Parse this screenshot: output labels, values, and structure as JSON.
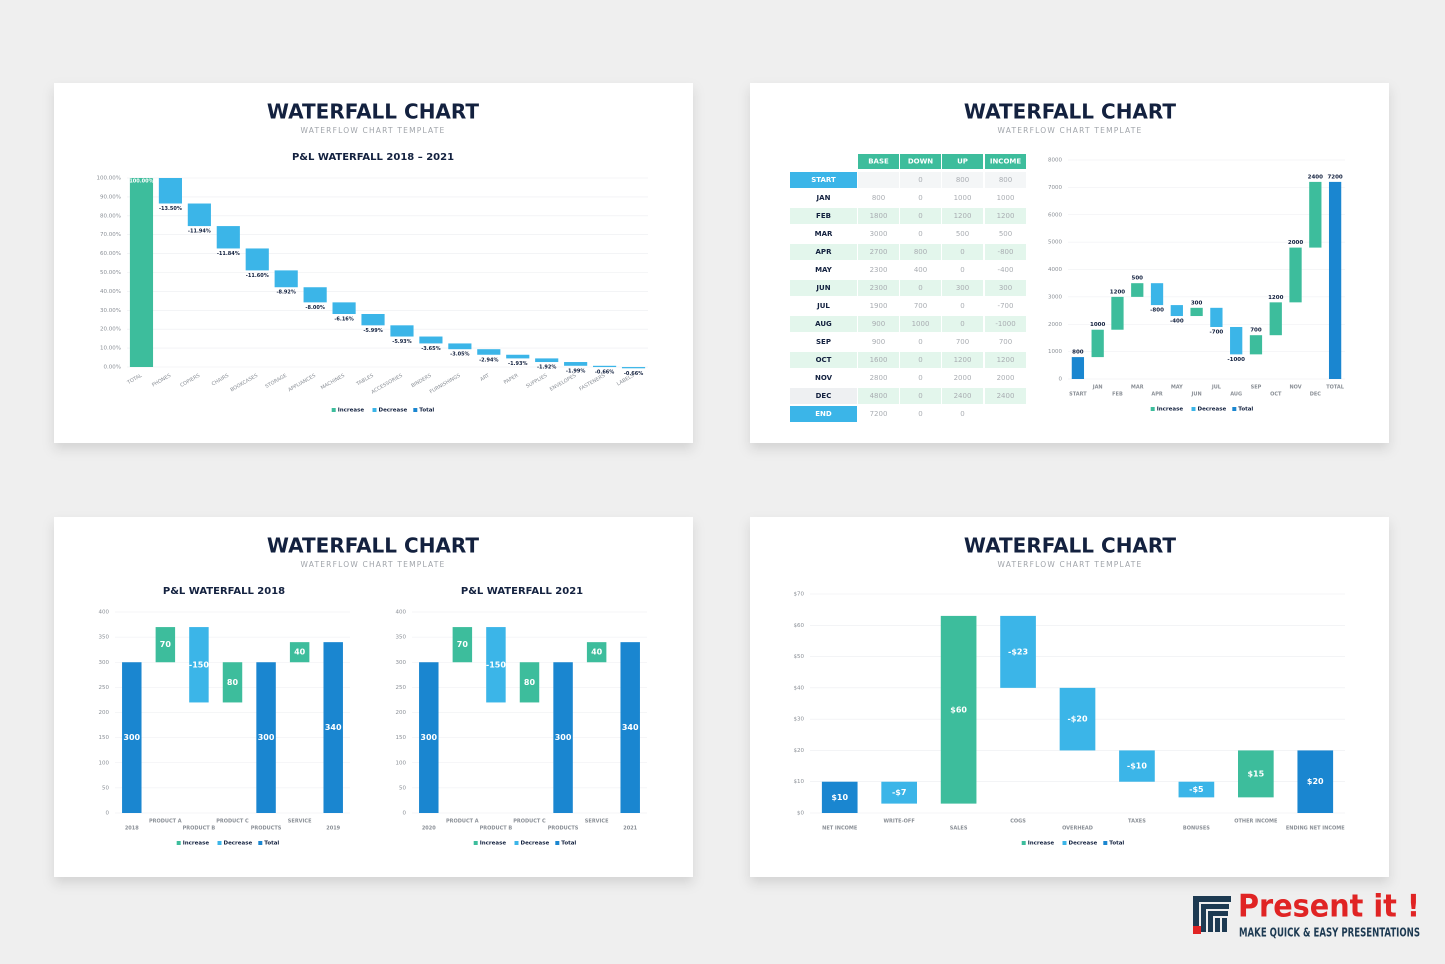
{
  "slides": [
    {
      "title": "WATERFALL CHART",
      "subtitle": "WATERFLOW CHART TEMPLATE"
    },
    {
      "title": "WATERFALL CHART",
      "subtitle": "WATERFLOW CHART TEMPLATE"
    },
    {
      "title": "WATERFALL CHART",
      "subtitle": "WATERFLOW CHART TEMPLATE"
    },
    {
      "title": "WATERFALL CHART",
      "subtitle": "WATERFLOW CHART TEMPLATE"
    }
  ],
  "chart_data": [
    {
      "type": "waterfall",
      "title": "P&L WATERFALL 2018 – 2021",
      "categories": [
        "TOTAL",
        "PHONES",
        "COPIERS",
        "CHAIRS",
        "BOOKCASES",
        "STORAGE",
        "APPLIANCES",
        "MACHINES",
        "TABLES",
        "ACCESSORIES",
        "BINDERS",
        "FURNISHINGS",
        "ART",
        "PAPER",
        "SUPPLIES",
        "ENVELOPES",
        "FASTENERS",
        "LABELS"
      ],
      "values": [
        100,
        -13.5,
        -11.94,
        -11.84,
        -11.6,
        -8.92,
        -8,
        -6.16,
        -5.99,
        -5.93,
        -3.65,
        -3.05,
        -2.94,
        -1.93,
        -1.92,
        -1.99,
        -0.66,
        -0.66
      ],
      "value_labels": [
        "100.00%",
        "-13.50%",
        "-11.94%",
        "-11.84%",
        "-11.60%",
        "-8.92%",
        "-8.00%",
        "-6.16%",
        "-5.99%",
        "-5.93%",
        "-3.65%",
        "-3.05%",
        "-2.94%",
        "-1.93%",
        "-1.92%",
        "-1.99%",
        "-0.66%",
        "-0.66%"
      ],
      "measure": [
        "relative",
        "relative",
        "relative",
        "relative",
        "relative",
        "relative",
        "relative",
        "relative",
        "relative",
        "relative",
        "relative",
        "relative",
        "relative",
        "relative",
        "relative",
        "relative",
        "relative",
        "relative"
      ],
      "ylim": [
        0,
        100
      ],
      "yticks": [
        {
          "value": 0,
          "label": "0.00%"
        },
        {
          "value": 10,
          "label": "10.00%"
        },
        {
          "value": 20,
          "label": "20.00%"
        },
        {
          "value": 30,
          "label": "30.00%"
        },
        {
          "value": 40,
          "label": "40.00%"
        },
        {
          "value": 50,
          "label": "50.00%"
        },
        {
          "value": 60,
          "label": "60.00%"
        },
        {
          "value": 70,
          "label": "70.00%"
        },
        {
          "value": 80,
          "label": "80.00%"
        },
        {
          "value": 90,
          "label": "90.00%"
        },
        {
          "value": 100,
          "label": "100.00%"
        }
      ],
      "grid": true,
      "legend": [
        {
          "name": "Increase",
          "color": "#3dbd9c"
        },
        {
          "name": "Decrease",
          "color": "#3bb5e8"
        },
        {
          "name": "Total",
          "color": "#1a86d0"
        }
      ]
    },
    {
      "type": "waterfall",
      "categories": [
        "START",
        "JAN",
        "FEB",
        "MAR",
        "APR",
        "MAY",
        "JUN",
        "JUL",
        "AUG",
        "SEP",
        "OCT",
        "NOV",
        "DEC",
        "TOTAL"
      ],
      "values": [
        800,
        1000,
        1200,
        500,
        -800,
        -400,
        300,
        -700,
        -1000,
        700,
        1200,
        2000,
        2400,
        7200
      ],
      "measure": [
        "total",
        "relative",
        "relative",
        "relative",
        "relative",
        "relative",
        "relative",
        "relative",
        "relative",
        "relative",
        "relative",
        "relative",
        "relative",
        "total"
      ],
      "ylim": [
        0,
        8000
      ],
      "yticks": [
        0,
        1000,
        2000,
        3000,
        4000,
        5000,
        6000,
        7000,
        8000
      ],
      "grid": true,
      "legend": [
        {
          "name": "Increase",
          "color": "#3dbd9c"
        },
        {
          "name": "Decrease",
          "color": "#3bb5e8"
        },
        {
          "name": "Total",
          "color": "#1a86d0"
        }
      ]
    },
    {
      "type": "waterfall",
      "title": "P&L WATERFALL 2018",
      "categories": [
        "2018",
        "PRODUCT A",
        "PRODUCT B",
        "PRODUCT C",
        "PRODUCTS",
        "SERVICE",
        "2019"
      ],
      "values": [
        300,
        70,
        -150,
        80,
        300,
        40,
        340
      ],
      "measure": [
        "total",
        "relative",
        "relative",
        "relative",
        "total",
        "relative",
        "total"
      ],
      "ylim": [
        0,
        400
      ],
      "yticks": [
        0,
        50,
        100,
        150,
        200,
        250,
        300,
        350,
        400
      ],
      "grid": true,
      "legend": [
        {
          "name": "Increase",
          "color": "#3dbd9c"
        },
        {
          "name": "Decrease",
          "color": "#3bb5e8"
        },
        {
          "name": "Total",
          "color": "#1a86d0"
        }
      ]
    },
    {
      "type": "waterfall",
      "title": "P&L WATERFALL 2021",
      "categories": [
        "2020",
        "PRODUCT A",
        "PRODUCT B",
        "PRODUCT C",
        "PRODUCTS",
        "SERVICE",
        "2021"
      ],
      "values": [
        300,
        70,
        -150,
        80,
        300,
        40,
        340
      ],
      "measure": [
        "total",
        "relative",
        "relative",
        "relative",
        "total",
        "relative",
        "total"
      ],
      "ylim": [
        0,
        400
      ],
      "yticks": [
        0,
        50,
        100,
        150,
        200,
        250,
        300,
        350,
        400
      ],
      "grid": true,
      "legend": [
        {
          "name": "Increase",
          "color": "#3dbd9c"
        },
        {
          "name": "Decrease",
          "color": "#3bb5e8"
        },
        {
          "name": "Total",
          "color": "#1a86d0"
        }
      ]
    },
    {
      "type": "waterfall",
      "categories": [
        "NET INCOME",
        "WRITE-OFF",
        "SALES",
        "COGS",
        "OVERHEAD",
        "TAXES",
        "BONUSES",
        "OTHER INCOME",
        "ENDING NET INCOME"
      ],
      "values": [
        10,
        -7,
        60,
        -23,
        -20,
        -10,
        -5,
        15,
        20
      ],
      "value_labels": [
        "$10",
        "-$7",
        "$60",
        "-$23",
        "-$20",
        "-$10",
        "-$5",
        "$15",
        "$20"
      ],
      "measure": [
        "total",
        "relative",
        "relative",
        "relative",
        "relative",
        "relative",
        "relative",
        "relative",
        "total"
      ],
      "ylim": [
        0,
        70
      ],
      "yticks": [
        {
          "value": 0,
          "label": "$0"
        },
        {
          "value": 10,
          "label": "$10"
        },
        {
          "value": 20,
          "label": "$20"
        },
        {
          "value": 30,
          "label": "$30"
        },
        {
          "value": 40,
          "label": "$40"
        },
        {
          "value": 50,
          "label": "$50"
        },
        {
          "value": 60,
          "label": "$60"
        },
        {
          "value": 70,
          "label": "$70"
        }
      ],
      "grid": true,
      "legend": [
        {
          "name": "Increase",
          "color": "#3dbd9c"
        },
        {
          "name": "Decrease",
          "color": "#3bb5e8"
        },
        {
          "name": "Total",
          "color": "#1a86d0"
        }
      ]
    }
  ],
  "table": {
    "columns": [
      "BASE",
      "DOWN",
      "UP",
      "INCOME"
    ],
    "rows": [
      {
        "label": "START",
        "cells": [
          null,
          0,
          800,
          800
        ]
      },
      {
        "label": "JAN",
        "cells": [
          800,
          0,
          1000,
          1000
        ]
      },
      {
        "label": "FEB",
        "cells": [
          1800,
          0,
          1200,
          1200
        ]
      },
      {
        "label": "MAR",
        "cells": [
          3000,
          0,
          500,
          500
        ]
      },
      {
        "label": "APR",
        "cells": [
          2700,
          800,
          0,
          -800
        ]
      },
      {
        "label": "MAY",
        "cells": [
          2300,
          400,
          0,
          -400
        ]
      },
      {
        "label": "JUN",
        "cells": [
          2300,
          0,
          300,
          300
        ]
      },
      {
        "label": "JUL",
        "cells": [
          1900,
          700,
          0,
          -700
        ]
      },
      {
        "label": "AUG",
        "cells": [
          900,
          1000,
          0,
          -1000
        ]
      },
      {
        "label": "SEP",
        "cells": [
          900,
          0,
          700,
          700
        ]
      },
      {
        "label": "OCT",
        "cells": [
          1600,
          0,
          1200,
          1200
        ]
      },
      {
        "label": "NOV",
        "cells": [
          2800,
          0,
          2000,
          2000
        ]
      },
      {
        "label": "DEC",
        "cells": [
          4800,
          0,
          2400,
          2400
        ]
      },
      {
        "label": "END",
        "cells": [
          7200,
          0,
          0,
          null
        ]
      }
    ]
  },
  "brand": {
    "name": "Present it !",
    "tagline": "MAKE QUICK & EASY PRESENTATIONS"
  }
}
